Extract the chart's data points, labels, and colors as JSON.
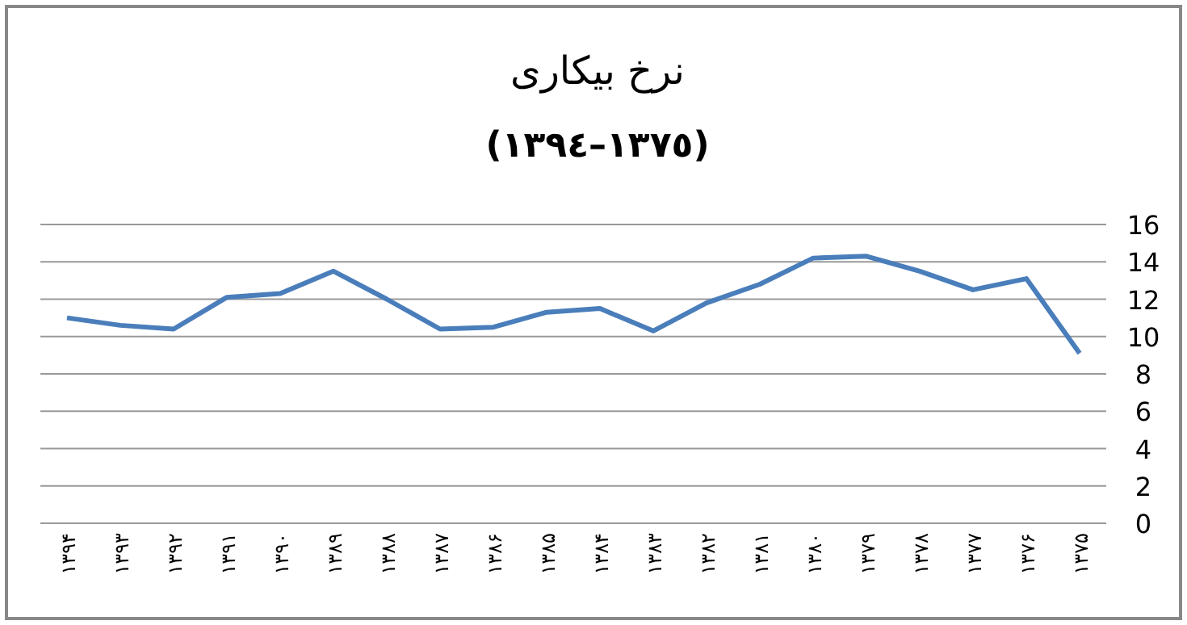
{
  "chart_data": {
    "type": "line",
    "title": "نرخ بیکاری",
    "subtitle": "(١٣٧٥–١٣٩٤)",
    "categories": [
      "۱۳۹۴",
      "۱۳۹۳",
      "۱۳۹۲",
      "۱۳۹۱",
      "۱۳۹۰",
      "۱۳۸۹",
      "۱۳۸۸",
      "۱۳۸۷",
      "۱۳۸۶",
      "۱۳۸۵",
      "۱۳۸۴",
      "۱۳۸۳",
      "۱۳۸۲",
      "۱۳۸۱",
      "۱۳۸۰",
      "۱۳۷۹",
      "۱۳۷۸",
      "۱۳۷۷",
      "۱۳۷۶",
      "۱۳۷۵"
    ],
    "series": [
      {
        "color": "#4a7ebb",
        "values": [
          11.0,
          10.6,
          10.4,
          12.1,
          12.3,
          13.5,
          12.0,
          10.4,
          10.5,
          11.3,
          11.5,
          10.3,
          11.8,
          12.8,
          14.2,
          14.3,
          13.5,
          12.5,
          13.1,
          9.1
        ]
      }
    ],
    "ylim": [
      0,
      16
    ],
    "yticks": [
      0,
      2,
      4,
      6,
      8,
      10,
      12,
      14,
      16
    ],
    "grid": "y",
    "marker": "none",
    "line_style": "solid"
  }
}
